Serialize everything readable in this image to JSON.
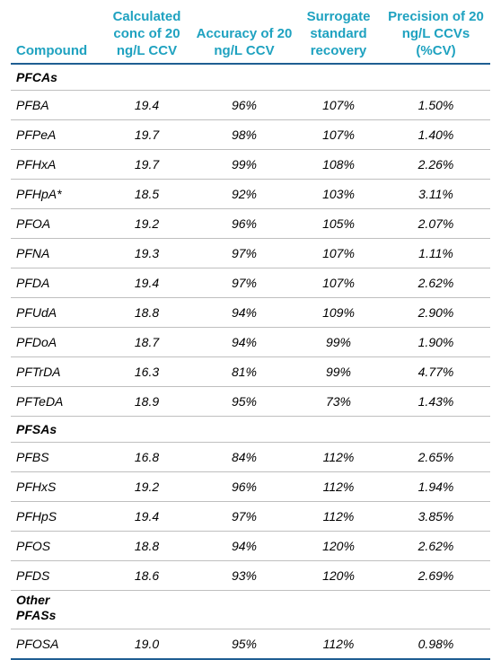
{
  "table": {
    "headers": [
      "Compound",
      "Calculated conc of 20 ng/L CCV",
      "Accuracy of 20 ng/L CCV",
      "Surrogate standard recovery",
      "Precision of 20 ng/L CCVs (%CV)"
    ],
    "groups": [
      {
        "label": "PFCAs",
        "rows": [
          [
            "PFBA",
            "19.4",
            "96%",
            "107%",
            "1.50%"
          ],
          [
            "PFPeA",
            "19.7",
            "98%",
            "107%",
            "1.40%"
          ],
          [
            "PFHxA",
            "19.7",
            "99%",
            "108%",
            "2.26%"
          ],
          [
            "PFHpA*",
            "18.5",
            "92%",
            "103%",
            "3.11%"
          ],
          [
            "PFOA",
            "19.2",
            "96%",
            "105%",
            "2.07%"
          ],
          [
            "PFNA",
            "19.3",
            "97%",
            "107%",
            "1.11%"
          ],
          [
            "PFDA",
            "19.4",
            "97%",
            "107%",
            "2.62%"
          ],
          [
            "PFUdA",
            "18.8",
            "94%",
            "109%",
            "2.90%"
          ],
          [
            "PFDoA",
            "18.7",
            "94%",
            "99%",
            "1.90%"
          ],
          [
            "PFTrDA",
            "16.3",
            "81%",
            "99%",
            "4.77%"
          ],
          [
            "PFTeDA",
            "18.9",
            "95%",
            "73%",
            "1.43%"
          ]
        ]
      },
      {
        "label": "PFSAs",
        "rows": [
          [
            "PFBS",
            "16.8",
            "84%",
            "112%",
            "2.65%"
          ],
          [
            "PFHxS",
            "19.2",
            "96%",
            "112%",
            "1.94%"
          ],
          [
            "PFHpS",
            "19.4",
            "97%",
            "112%",
            "3.85%"
          ],
          [
            "PFOS",
            "18.8",
            "94%",
            "120%",
            "2.62%"
          ],
          [
            "PFDS",
            "18.6",
            "93%",
            "120%",
            "2.69%"
          ]
        ]
      },
      {
        "label": "Other PFASs",
        "rows": [
          [
            "PFOSA",
            "19.0",
            "95%",
            "112%",
            "0.98%"
          ]
        ]
      }
    ]
  }
}
